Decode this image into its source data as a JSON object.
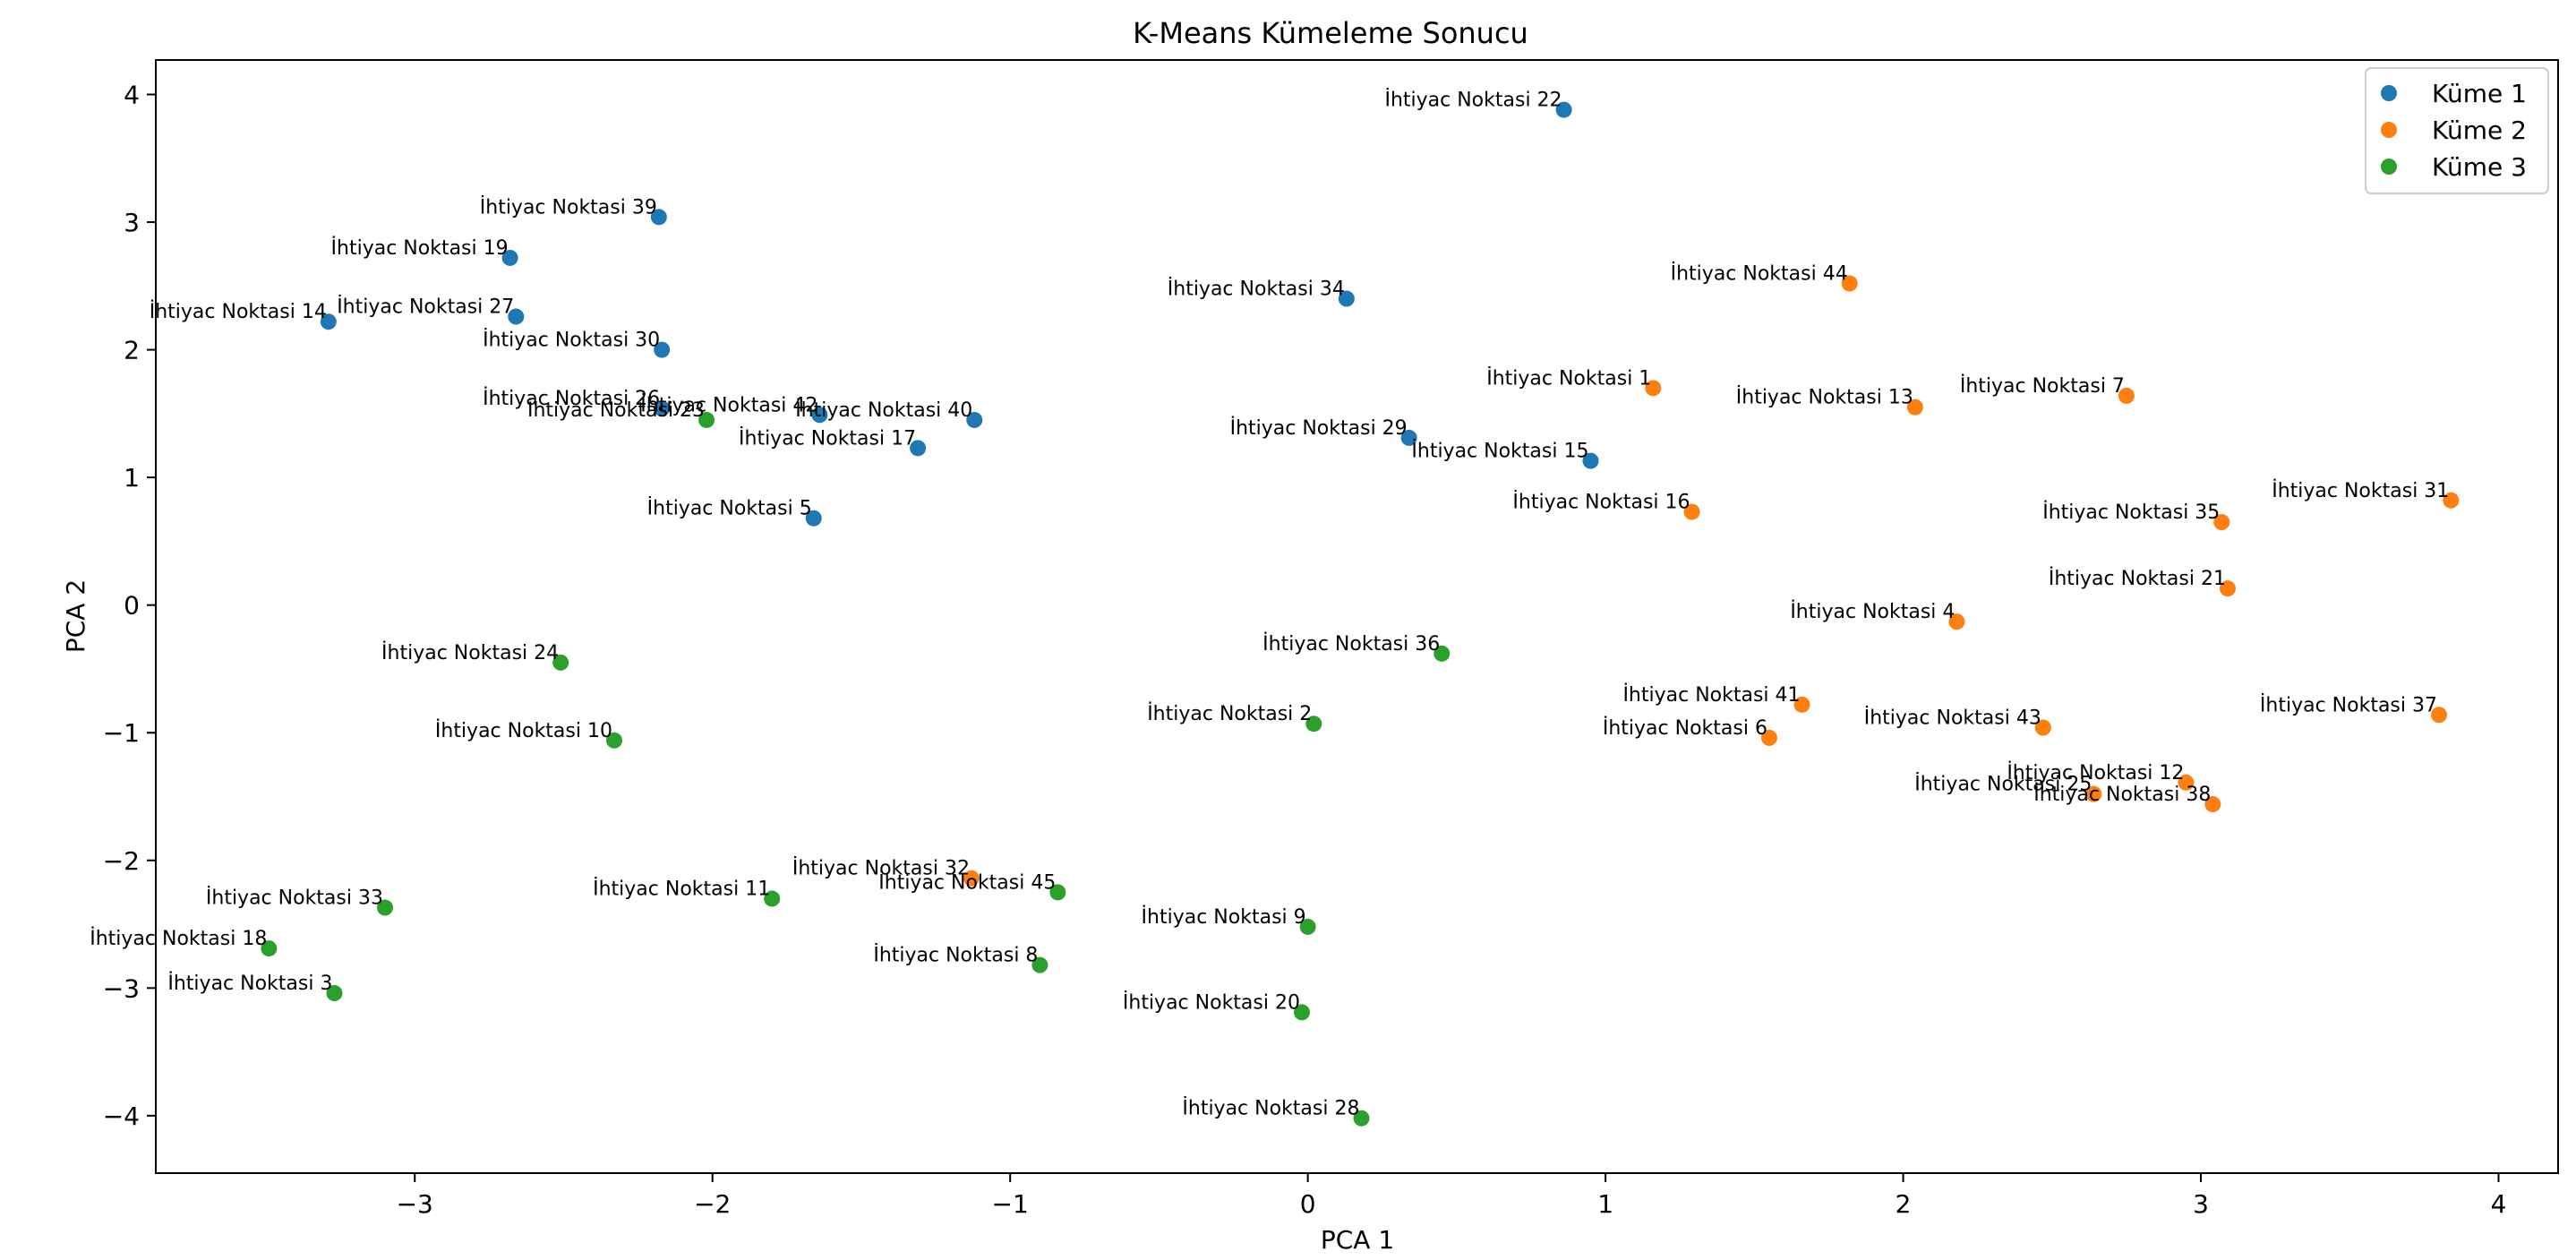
{
  "chart_data": {
    "type": "scatter",
    "title": "K-Means Kümeleme Sonucu",
    "xlabel": "PCA 1",
    "ylabel": "PCA 2",
    "xlim": [
      -3.87,
      4.2
    ],
    "ylim": [
      -4.45,
      4.27
    ],
    "xticks": [
      -3,
      -2,
      -1,
      0,
      1,
      2,
      3,
      4
    ],
    "yticks": [
      -4,
      -3,
      -2,
      -1,
      0,
      1,
      2,
      3,
      4
    ],
    "xtick_labels": [
      "−3",
      "−2",
      "−1",
      "0",
      "1",
      "2",
      "3",
      "4"
    ],
    "ytick_labels": [
      "−4",
      "−3",
      "−2",
      "−1",
      "0",
      "1",
      "2",
      "3",
      "4"
    ],
    "grid": false,
    "legend_position": "top-right",
    "series": [
      {
        "name": "Küme 1",
        "color": "#1f77b4",
        "points": [
          {
            "label": "İhtiyac Noktasi 22",
            "x": 0.86,
            "y": 3.88
          },
          {
            "label": "İhtiyac Noktasi 39",
            "x": -2.18,
            "y": 3.04
          },
          {
            "label": "İhtiyac Noktasi 19",
            "x": -2.68,
            "y": 2.72
          },
          {
            "label": "İhtiyac Noktasi 14",
            "x": -3.29,
            "y": 2.22
          },
          {
            "label": "İhtiyac Noktasi 27",
            "x": -2.66,
            "y": 2.26
          },
          {
            "label": "İhtiyac Noktasi 30",
            "x": -2.17,
            "y": 2.0
          },
          {
            "label": "İhtiyac Noktasi 34",
            "x": 0.13,
            "y": 2.4
          },
          {
            "label": "İhtiyac Noktasi 26",
            "x": -2.17,
            "y": 1.54
          },
          {
            "label": "İhtiyac Noktasi 42",
            "x": -1.64,
            "y": 1.49
          },
          {
            "label": "İhtiyac Noktasi 40",
            "x": -1.12,
            "y": 1.45
          },
          {
            "label": "İhtiyac Noktasi 17",
            "x": -1.31,
            "y": 1.23
          },
          {
            "label": "İhtiyac Noktasi 29",
            "x": 0.34,
            "y": 1.31
          },
          {
            "label": "İhtiyac Noktasi 15",
            "x": 0.95,
            "y": 1.13
          },
          {
            "label": "İhtiyac Noktasi 5",
            "x": -1.66,
            "y": 0.68
          }
        ]
      },
      {
        "name": "Küme 2",
        "color": "#ff7f0e",
        "points": [
          {
            "label": "İhtiyac Noktasi 44",
            "x": 1.82,
            "y": 2.52
          },
          {
            "label": "İhtiyac Noktasi 1",
            "x": 1.16,
            "y": 1.7
          },
          {
            "label": "İhtiyac Noktasi 13",
            "x": 2.04,
            "y": 1.55
          },
          {
            "label": "İhtiyac Noktasi 7",
            "x": 2.75,
            "y": 1.64
          },
          {
            "label": "İhtiyac Noktasi 31",
            "x": 3.84,
            "y": 0.82
          },
          {
            "label": "İhtiyac Noktasi 35",
            "x": 3.07,
            "y": 0.65
          },
          {
            "label": "İhtiyac Noktasi 16",
            "x": 1.29,
            "y": 0.73
          },
          {
            "label": "İhtiyac Noktasi 21",
            "x": 3.09,
            "y": 0.13
          },
          {
            "label": "İhtiyac Noktasi 4",
            "x": 2.18,
            "y": -0.13
          },
          {
            "label": "İhtiyac Noktasi 41",
            "x": 1.66,
            "y": -0.78
          },
          {
            "label": "İhtiyac Noktasi 6",
            "x": 1.55,
            "y": -1.04
          },
          {
            "label": "İhtiyac Noktasi 43",
            "x": 2.47,
            "y": -0.96
          },
          {
            "label": "İhtiyac Noktasi 37",
            "x": 3.8,
            "y": -0.86
          },
          {
            "label": "İhtiyac Noktasi 12",
            "x": 2.95,
            "y": -1.39
          },
          {
            "label": "İhtiyac Noktasi 25",
            "x": 2.64,
            "y": -1.48
          },
          {
            "label": "İhtiyac Noktasi 38",
            "x": 3.04,
            "y": -1.56
          },
          {
            "label": "İhtiyac Noktasi 32",
            "x": -1.13,
            "y": -2.14
          }
        ]
      },
      {
        "name": "Küme 3",
        "color": "#2ca02c",
        "points": [
          {
            "label": "İhtiyac Noktasi 23",
            "x": -2.02,
            "y": 1.45
          },
          {
            "label": "İhtiyac Noktasi 24",
            "x": -2.51,
            "y": -0.45
          },
          {
            "label": "İhtiyac Noktasi 36",
            "x": 0.45,
            "y": -0.38
          },
          {
            "label": "İhtiyac Noktasi 2",
            "x": 0.02,
            "y": -0.93
          },
          {
            "label": "İhtiyac Noktasi 10",
            "x": -2.33,
            "y": -1.06
          },
          {
            "label": "İhtiyac Noktasi 11",
            "x": -1.8,
            "y": -2.3
          },
          {
            "label": "İhtiyac Noktasi 45",
            "x": -0.84,
            "y": -2.25
          },
          {
            "label": "İhtiyac Noktasi 33",
            "x": -3.1,
            "y": -2.37
          },
          {
            "label": "İhtiyac Noktasi 18",
            "x": -3.49,
            "y": -2.69
          },
          {
            "label": "İhtiyac Noktasi 3",
            "x": -3.27,
            "y": -3.04
          },
          {
            "label": "İhtiyac Noktasi 9",
            "x": 0.0,
            "y": -2.52
          },
          {
            "label": "İhtiyac Noktasi 8",
            "x": -0.9,
            "y": -2.82
          },
          {
            "label": "İhtiyac Noktasi 20",
            "x": -0.02,
            "y": -3.19
          },
          {
            "label": "İhtiyac Noktasi 28",
            "x": 0.18,
            "y": -4.02
          }
        ]
      }
    ]
  }
}
